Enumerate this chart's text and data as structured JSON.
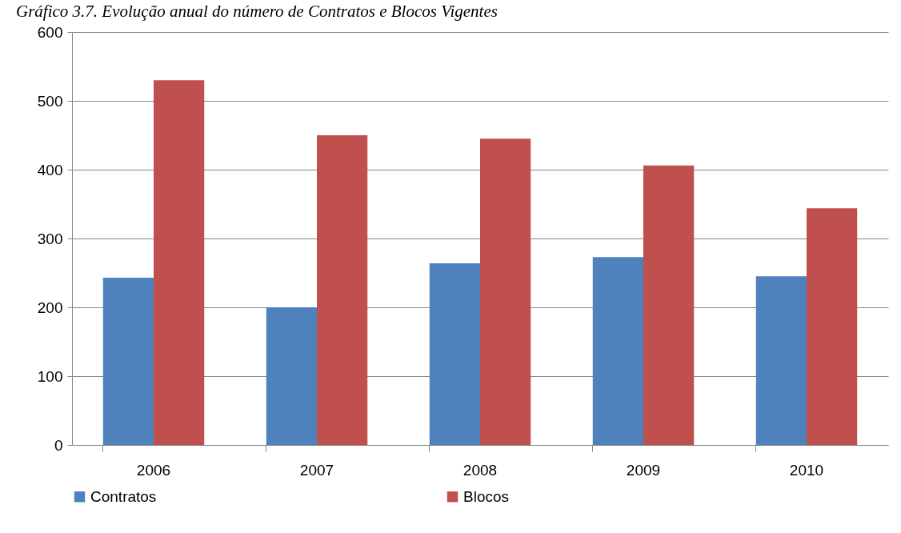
{
  "chart_data": {
    "type": "bar",
    "title": "Gráfico 3.7. Evolução anual do número de Contratos e Blocos Vigentes",
    "categories": [
      "2006",
      "2007",
      "2008",
      "2009",
      "2010"
    ],
    "series": [
      {
        "name": "Contratos",
        "color": "#4f81bd",
        "values": [
          243,
          200,
          264,
          273,
          245
        ]
      },
      {
        "name": "Blocos",
        "color": "#c0504d",
        "values": [
          530,
          450,
          445,
          406,
          344
        ]
      }
    ],
    "ylim": [
      0,
      600
    ],
    "yticks": [
      0,
      100,
      200,
      300,
      400,
      500,
      600
    ],
    "grid": "y",
    "legend": "bottom"
  }
}
